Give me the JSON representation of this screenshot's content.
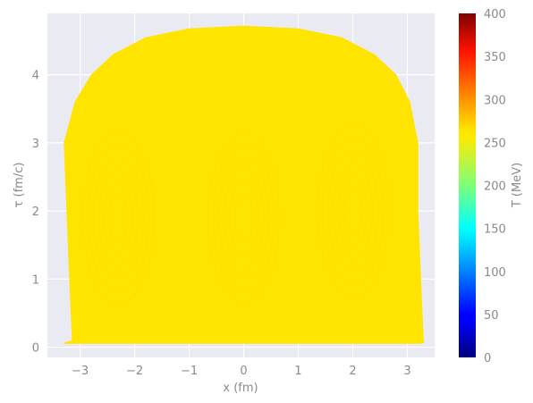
{
  "chart_data": {
    "type": "heatmap",
    "xlabel": "x (fm)",
    "ylabel": "τ (fm/c)",
    "xlim": [
      -3.6,
      3.5
    ],
    "ylim": [
      -0.15,
      4.9
    ],
    "xticks": [
      "−3",
      "−2",
      "−1",
      "0",
      "1",
      "2",
      "3"
    ],
    "xtick_values": [
      -3,
      -2,
      -1,
      0,
      1,
      2,
      3
    ],
    "yticks": [
      "0",
      "1",
      "2",
      "3",
      "4"
    ],
    "ytick_values": [
      0,
      1,
      2,
      3,
      4
    ],
    "colorbar": {
      "label": "T (MeV)",
      "range": [
        0,
        400
      ],
      "ticks": [
        "0",
        "50",
        "100",
        "150",
        "200",
        "250",
        "300",
        "350",
        "400"
      ],
      "tick_values": [
        0,
        50,
        100,
        150,
        200,
        250,
        300,
        350,
        400
      ],
      "colormap": "jet"
    },
    "grid": true,
    "region": {
      "description_value_T": 265,
      "fill_color": "#ffe400",
      "boundary_x": [
        -3.15,
        -3.2,
        -3.25,
        -3.3,
        -3.1,
        -2.8,
        -2.4,
        -1.8,
        -1.0,
        0.0,
        1.0,
        1.8,
        2.4,
        2.8,
        3.05,
        3.2,
        3.2,
        3.25,
        3.3
      ],
      "boundary_tau": [
        0.1,
        1.0,
        2.0,
        3.0,
        3.6,
        4.0,
        4.3,
        4.55,
        4.68,
        4.72,
        4.68,
        4.55,
        4.3,
        4.0,
        3.6,
        3.0,
        2.0,
        1.0,
        0.1
      ]
    }
  }
}
